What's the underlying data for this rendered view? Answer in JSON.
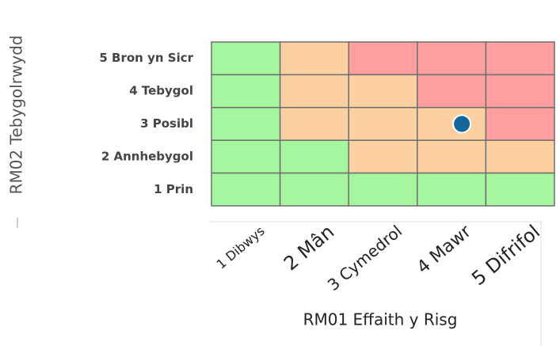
{
  "chart_data": {
    "type": "heatmap",
    "x_label": "RM01 Effaith y Risg",
    "y_label": "RM02 Tebygolrwydd",
    "x_categories": [
      "1 Dibwys",
      "2 Mân",
      "3 Cymedrol",
      "4 Mawr",
      "5 Difrifol"
    ],
    "y_categories": [
      "5 Bron yn Sicr",
      "4 Tebygol",
      "3 Posibl",
      "2 Annhebygol",
      "1 Prin"
    ],
    "cell_colors": [
      [
        "#a6f59f",
        "#fdd0a2",
        "#fe9e9e",
        "#fe9e9e",
        "#fe9e9e"
      ],
      [
        "#a6f59f",
        "#fdd0a2",
        "#fdd0a2",
        "#fe9e9e",
        "#fe9e9e"
      ],
      [
        "#a6f59f",
        "#fdd0a2",
        "#fdd0a2",
        "#fdd0a2",
        "#fe9e9e"
      ],
      [
        "#a6f59f",
        "#a6f59f",
        "#fdd0a2",
        "#fdd0a2",
        "#fdd0a2"
      ],
      [
        "#a6f59f",
        "#a6f59f",
        "#a6f59f",
        "#a6f59f",
        "#a6f59f"
      ]
    ],
    "point": {
      "x": "4 Mawr",
      "y": "3 Posibl",
      "color": "#13679a"
    }
  }
}
